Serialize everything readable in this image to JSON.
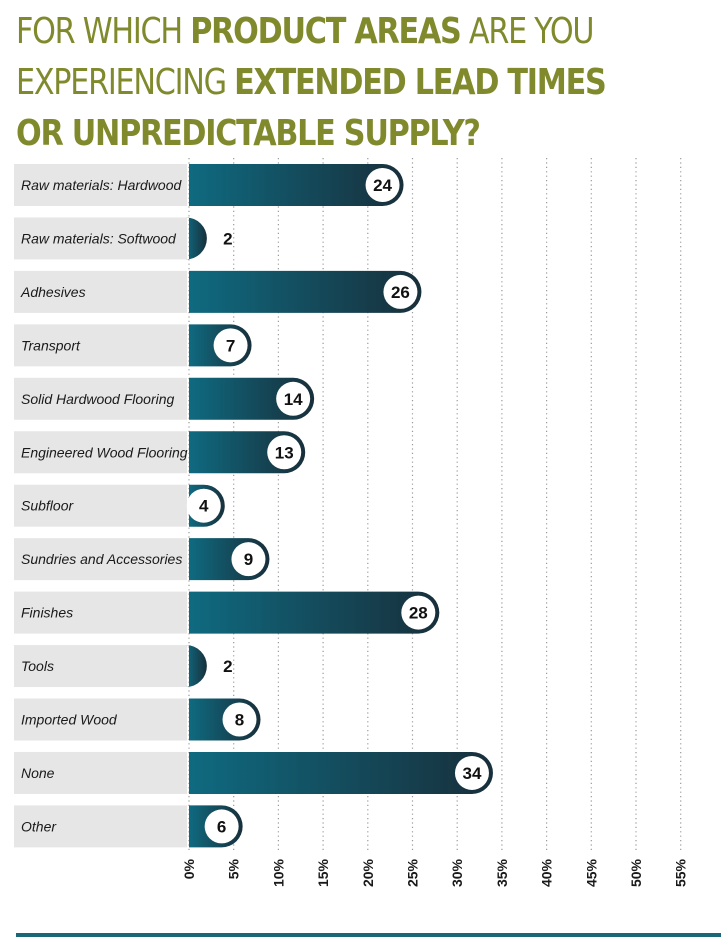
{
  "title": {
    "lines": [
      [
        {
          "text": "FOR WHICH ",
          "bold": false
        },
        {
          "text": "PRODUCT AREAS",
          "bold": true
        },
        {
          "text": " ARE YOU",
          "bold": false
        }
      ],
      [
        {
          "text": "EXPERIENCING ",
          "bold": false
        },
        {
          "text": "EXTENDED LEAD TIMES",
          "bold": true
        }
      ],
      [
        {
          "text": "OR UNPREDICTABLE SUPPLY?",
          "bold": true
        }
      ]
    ]
  },
  "colors": {
    "title": "#808a2c",
    "bar_start": "#0f6a80",
    "bar_end": "#182f3b",
    "label_bg": "#e6e6e6",
    "grid": "#9a9a9a",
    "rule": "#1b6678"
  },
  "chart_data": {
    "type": "bar",
    "orientation": "horizontal",
    "categories": [
      "Raw materials: Hardwood",
      "Raw materials: Softwood",
      "Adhesives",
      "Transport",
      "Solid Hardwood Flooring",
      "Engineered Wood Flooring",
      "Subfloor",
      "Sundries and Accessories",
      "Finishes",
      "Tools",
      "Imported Wood",
      "None",
      "Other"
    ],
    "values": [
      24,
      2,
      26,
      7,
      14,
      13,
      4,
      9,
      28,
      2,
      8,
      34,
      6
    ],
    "data_labels": [
      "24",
      "2",
      "26",
      "7",
      "14",
      "13",
      "4",
      "9",
      "28",
      "2",
      "8",
      "34",
      "6"
    ],
    "x_ticks": [
      0,
      5,
      10,
      15,
      20,
      25,
      30,
      35,
      40,
      45,
      50,
      55
    ],
    "x_tick_labels": [
      "0%",
      "5%",
      "10%",
      "15%",
      "20%",
      "25%",
      "30%",
      "35%",
      "40%",
      "45%",
      "50%",
      "55%"
    ],
    "xlim": [
      0,
      55
    ],
    "grid": true,
    "legend": "none"
  }
}
